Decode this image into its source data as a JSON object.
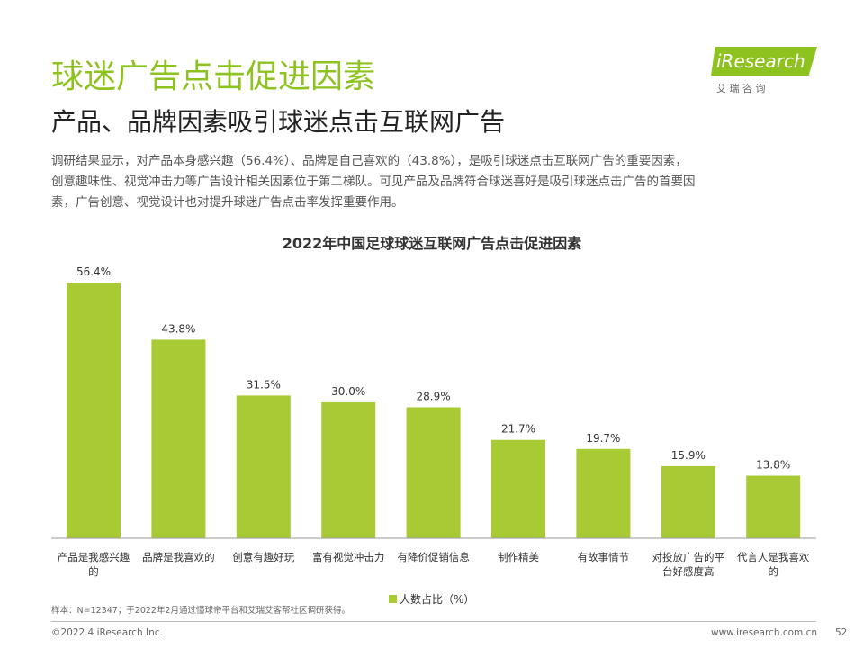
{
  "header": {
    "title": "球迷广告点击促进因素",
    "subtitle": "产品、品牌因素吸引球迷点击互联网广告",
    "body_lines": [
      "调研结果显示，对产品本身感兴趣（56.4%）、品牌是自己喜欢的（43.8%），是吸引球迷点击互联网广告的重要因素，",
      "创意趣味性、视觉冲击力等广告设计相关因素位于第二梯队。可见产品及品牌符合球迷喜好是吸引球迷点击广告的首要因",
      "素，广告创意、视觉设计也对提升球迷广告点击率发挥重要作用。"
    ]
  },
  "logo": {
    "name": "iResearch",
    "cn": "艾 瑞 咨 询"
  },
  "chart_data": {
    "type": "bar",
    "title": "2022年中国足球球迷互联网广告点击促进因素",
    "categories": [
      "产品是我感兴趣的",
      "品牌是我喜欢的",
      "创意有趣好玩",
      "富有视觉冲击力",
      "有降价促销信息",
      "制作精美",
      "有故事情节",
      "对投放广告的平台好感度高",
      "代言人是我喜欢的"
    ],
    "series": [
      {
        "name": "人数占比（%）",
        "color": "#a8cb35",
        "values": [
          56.4,
          43.8,
          31.5,
          30.0,
          28.9,
          21.7,
          19.7,
          15.9,
          13.8
        ],
        "value_labels": [
          "56.4%",
          "43.8%",
          "31.5%",
          "30.0%",
          "28.9%",
          "21.7%",
          "19.7%",
          "15.9%",
          "13.8%"
        ]
      }
    ],
    "source": "样本：N=12347；于2022年2月通过懂球帝平台和艾瑞艾客帮社区调研获得。"
  },
  "footer": {
    "copyright": "©2022.4 iResearch Inc.",
    "url": "www.iresearch.com.cn",
    "page": "52"
  }
}
